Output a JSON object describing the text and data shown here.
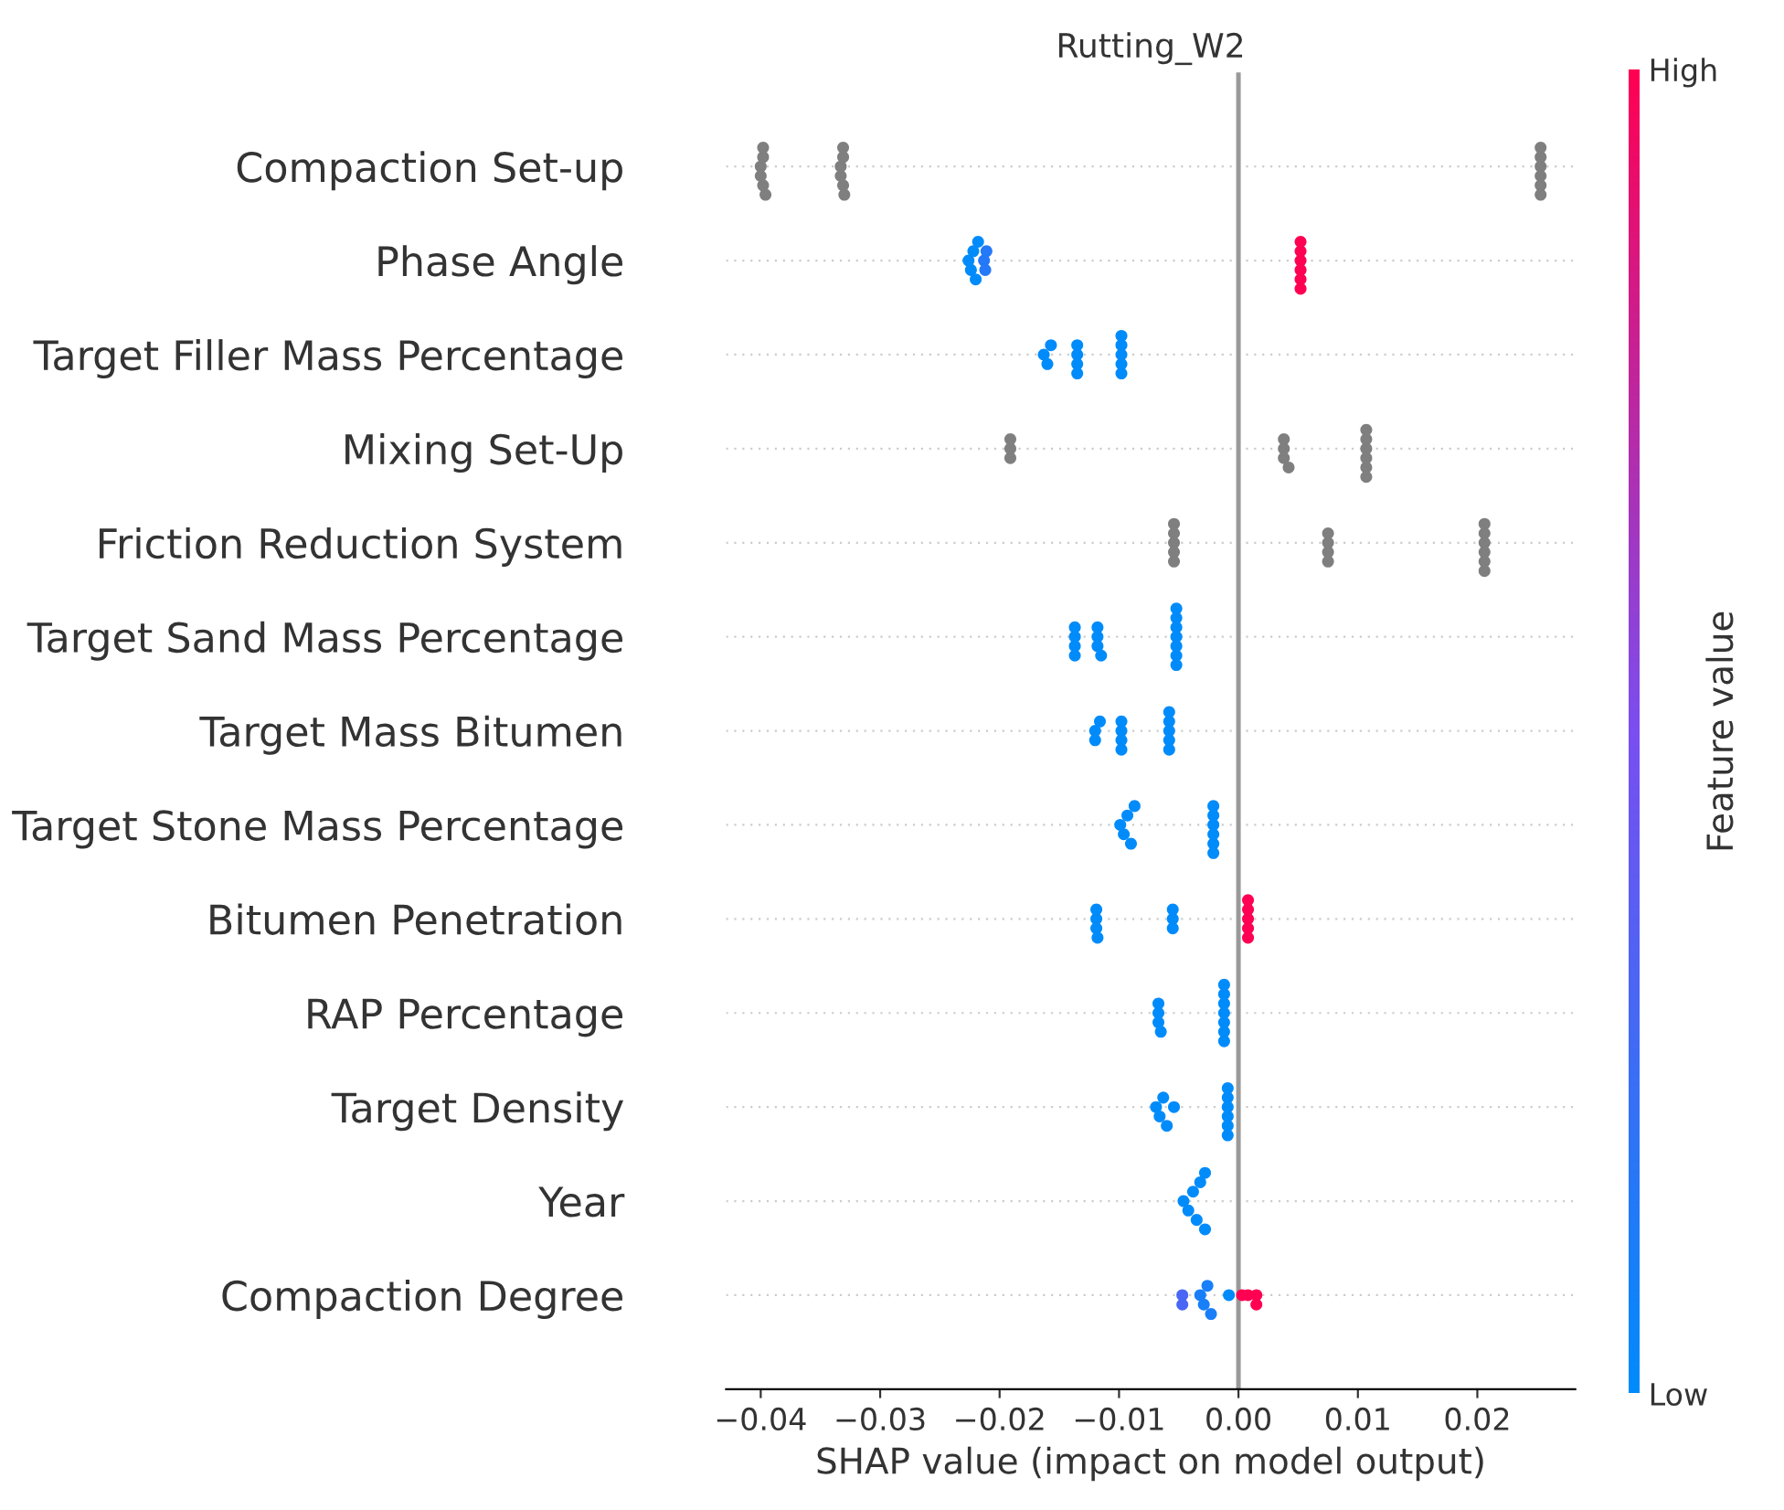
{
  "chart_data": {
    "type": "scatter",
    "orientation": "horizontal",
    "title": "Rutting_W2",
    "xlabel": "SHAP value (impact on model output)",
    "clabel": "Feature value",
    "categories": [
      "Compaction Set-up",
      "Phase Angle",
      "Target Filler Mass Percentage",
      "Mixing Set-Up",
      "Friction Reduction System",
      "Target Sand Mass Percentage",
      "Target Mass Bitumen",
      "Target Stone Mass Percentage",
      "Bitumen Penetration",
      "RAP Percentage",
      "Target Density",
      "Year",
      "Compaction Degree"
    ],
    "series": [
      {
        "colors": [
          "#7f7f7f",
          null,
          null,
          "#7f7f7f",
          "#7f7f7f",
          null,
          null,
          null,
          null,
          null,
          null,
          null,
          null
        ],
        "values": [
          -0.04,
          -0.0226,
          -0.0163,
          -0.0191,
          -0.0054,
          -0.0137,
          -0.012,
          -0.0099,
          -0.0119,
          -0.0067,
          -0.0069,
          -0.0046,
          -0.0047
        ],
        "cvalues": [
          null,
          0,
          0,
          null,
          null,
          0,
          0,
          0,
          0,
          0,
          0,
          0,
          0.3
        ]
      },
      {
        "colors": [
          "#7f7f7f",
          null,
          null,
          "#7f7f7f",
          "#7f7f7f",
          null,
          null,
          null,
          null,
          null,
          null,
          null,
          null
        ],
        "values": [
          -0.0398,
          -0.0222,
          -0.016,
          -0.0191,
          -0.0054,
          -0.0137,
          -0.012,
          -0.0093,
          -0.0119,
          -0.0067,
          -0.0066,
          -0.0042,
          -0.0047
        ],
        "cvalues": [
          null,
          0,
          0,
          null,
          null,
          0,
          0,
          0,
          0,
          0,
          0,
          0,
          0.3
        ]
      },
      {
        "colors": [
          "#7f7f7f",
          null,
          null,
          "#7f7f7f",
          "#7f7f7f",
          null,
          null,
          null,
          null,
          null,
          null,
          null,
          null
        ],
        "values": [
          -0.0398,
          -0.0218,
          -0.0157,
          -0.0191,
          -0.0054,
          -0.0137,
          -0.0116,
          -0.0096,
          -0.0119,
          -0.0067,
          -0.0063,
          -0.0038,
          -0.0032
        ],
        "cvalues": [
          null,
          0,
          0,
          null,
          null,
          0,
          0,
          0,
          0,
          0,
          0,
          0,
          0.1
        ]
      },
      {
        "colors": [
          "#7f7f7f",
          null,
          null,
          "#7f7f7f",
          "#7f7f7f",
          null,
          null,
          null,
          null,
          null,
          null,
          null,
          null
        ],
        "values": [
          -0.0396,
          -0.0224,
          -0.0135,
          0.0038,
          -0.0054,
          -0.0137,
          -0.0098,
          -0.009,
          -0.0118,
          -0.0065,
          -0.006,
          -0.0035,
          -0.0029
        ],
        "cvalues": [
          null,
          0,
          0,
          null,
          null,
          0,
          0,
          0,
          0,
          0,
          0,
          0,
          0.1
        ]
      },
      {
        "colors": [
          "#7f7f7f",
          null,
          null,
          "#7f7f7f",
          "#7f7f7f",
          null,
          null,
          null,
          null,
          null,
          null,
          null,
          null
        ],
        "values": [
          -0.0398,
          -0.0213,
          -0.0135,
          0.0038,
          -0.0054,
          -0.0118,
          -0.0098,
          -0.0087,
          -0.0055,
          -0.0012,
          -0.0054,
          -0.0032,
          -0.0026
        ],
        "cvalues": [
          null,
          0.15,
          0,
          null,
          null,
          0,
          0,
          0,
          0,
          0,
          0,
          0,
          0.1
        ]
      },
      {
        "colors": [
          "#7f7f7f",
          null,
          null,
          "#7f7f7f",
          "#7f7f7f",
          null,
          null,
          null,
          null,
          null,
          null,
          null,
          null
        ],
        "values": [
          -0.04,
          -0.0211,
          -0.0135,
          0.0042,
          0.0075,
          -0.0118,
          -0.0098,
          -0.0021,
          -0.0055,
          -0.0012,
          -0.0009,
          -0.0028,
          -0.0023
        ],
        "cvalues": [
          null,
          0.15,
          0,
          null,
          null,
          0,
          0,
          0,
          0,
          0,
          0,
          0,
          0.1
        ]
      },
      {
        "colors": [
          "#7f7f7f",
          null,
          null,
          "#7f7f7f",
          "#7f7f7f",
          null,
          null,
          null,
          null,
          null,
          null,
          null,
          null
        ],
        "values": [
          -0.0333,
          -0.0212,
          -0.0135,
          0.0038,
          0.0075,
          -0.0115,
          -0.0098,
          -0.0021,
          -0.0055,
          -0.0012,
          -0.0009,
          -0.0028,
          -0.0008
        ],
        "cvalues": [
          null,
          0.15,
          0,
          null,
          null,
          0,
          0,
          0,
          0,
          0,
          0,
          0,
          0
        ]
      },
      {
        "colors": [
          "#7f7f7f",
          null,
          null,
          "#7f7f7f",
          "#7f7f7f",
          null,
          null,
          null,
          null,
          null,
          null,
          null,
          null
        ],
        "values": [
          -0.0331,
          -0.022,
          -0.0098,
          0.0107,
          0.0075,
          -0.0118,
          -0.0058,
          -0.0021,
          0.0008,
          -0.0012,
          -0.0009,
          null,
          0.0003
        ],
        "cvalues": [
          null,
          0,
          0,
          null,
          null,
          0,
          0,
          0,
          1,
          0,
          0,
          null,
          1
        ]
      },
      {
        "colors": [
          "#7f7f7f",
          null,
          null,
          "#7f7f7f",
          "#7f7f7f",
          null,
          null,
          null,
          null,
          null,
          null,
          null,
          null
        ],
        "values": [
          -0.0331,
          0.0052,
          -0.0098,
          0.0107,
          0.0075,
          -0.0052,
          -0.0058,
          -0.0021,
          0.0008,
          -0.0012,
          -0.0009,
          null,
          0.0008
        ],
        "cvalues": [
          null,
          1,
          0,
          null,
          null,
          0,
          0,
          0,
          1,
          0,
          0,
          null,
          1
        ]
      },
      {
        "colors": [
          "#7f7f7f",
          null,
          null,
          "#7f7f7f",
          "#7f7f7f",
          null,
          null,
          null,
          null,
          null,
          null,
          null,
          null
        ],
        "values": [
          -0.033,
          0.0052,
          -0.0098,
          0.0107,
          0.0206,
          -0.0052,
          -0.0058,
          -0.0021,
          0.0008,
          -0.0012,
          -0.0009,
          null,
          0.0015
        ],
        "cvalues": [
          null,
          1,
          0,
          null,
          null,
          0,
          0,
          0,
          1,
          0,
          0,
          null,
          1
        ]
      },
      {
        "colors": [
          "#7f7f7f",
          null,
          null,
          "#7f7f7f",
          "#7f7f7f",
          null,
          null,
          null,
          null,
          null,
          null,
          null,
          null
        ],
        "values": [
          -0.0333,
          0.0052,
          -0.0098,
          0.0107,
          0.0206,
          -0.0052,
          -0.0058,
          -0.0021,
          0.0008,
          -0.0012,
          -0.0009,
          null,
          0.0015
        ],
        "cvalues": [
          null,
          1,
          0,
          null,
          null,
          0,
          0,
          0,
          1,
          0,
          0,
          null,
          1
        ]
      },
      {
        "colors": [
          "#7f7f7f",
          null,
          null,
          "#7f7f7f",
          "#7f7f7f",
          null,
          null,
          null,
          null,
          null,
          null,
          null,
          null
        ],
        "values": [
          -0.0331,
          0.0052,
          -0.0098,
          0.0107,
          0.0206,
          -0.0052,
          -0.0058,
          null,
          0.0008,
          null,
          null,
          null,
          null
        ],
        "cvalues": [
          null,
          1,
          0,
          null,
          null,
          0,
          0,
          null,
          1,
          null,
          null,
          null,
          null
        ]
      },
      {
        "colors": [
          "#7f7f7f",
          null,
          null,
          "#7f7f7f",
          "#7f7f7f",
          null,
          null,
          null,
          null,
          null,
          null,
          null,
          null
        ],
        "values": [
          0.0253,
          0.0052,
          null,
          0.0107,
          0.0206,
          -0.0052,
          null,
          null,
          null,
          null,
          null,
          null,
          null
        ],
        "cvalues": [
          null,
          1,
          null,
          null,
          null,
          0,
          null,
          null,
          null,
          null,
          null,
          null,
          null
        ]
      },
      {
        "colors": [
          "#7f7f7f",
          null,
          null,
          null,
          "#7f7f7f",
          null,
          null,
          null,
          null,
          null,
          null,
          null,
          null
        ],
        "values": [
          0.0253,
          0.0052,
          null,
          null,
          0.0206,
          -0.0052,
          null,
          null,
          null,
          null,
          null,
          null,
          null
        ],
        "cvalues": [
          null,
          1,
          null,
          null,
          null,
          0,
          null,
          null,
          null,
          null,
          null,
          null,
          null
        ]
      },
      {
        "colors": [
          "#7f7f7f",
          null,
          null,
          null,
          "#7f7f7f",
          null,
          null,
          null,
          null,
          null,
          null,
          null,
          null
        ],
        "values": [
          0.0253,
          null,
          null,
          null,
          0.0206,
          -0.0052,
          null,
          null,
          null,
          null,
          null,
          null,
          null
        ],
        "cvalues": [
          null,
          null,
          null,
          null,
          null,
          0,
          null,
          null,
          null,
          null,
          null,
          null,
          null
        ]
      },
      {
        "colors": [
          "#7f7f7f",
          null,
          null,
          null,
          null,
          null,
          null,
          null,
          null,
          null,
          null,
          null,
          null
        ],
        "values": [
          0.0253,
          null,
          null,
          null,
          null,
          null,
          null,
          null,
          null,
          null,
          null,
          null,
          null
        ],
        "cvalues": [
          null,
          null,
          null,
          null,
          null,
          null,
          null,
          null,
          null,
          null,
          null,
          null,
          null
        ]
      },
      {
        "colors": [
          "#7f7f7f",
          null,
          null,
          null,
          null,
          null,
          null,
          null,
          null,
          null,
          null,
          null,
          null
        ],
        "values": [
          0.0253,
          null,
          null,
          null,
          null,
          null,
          null,
          null,
          null,
          null,
          null,
          null,
          null
        ],
        "cvalues": [
          null,
          null,
          null,
          null,
          null,
          null,
          null,
          null,
          null,
          null,
          null,
          null,
          null
        ]
      },
      {
        "colors": [
          "#7f7f7f",
          null,
          null,
          null,
          null,
          null,
          null,
          null,
          null,
          null,
          null,
          null,
          null
        ],
        "values": [
          0.0253,
          null,
          null,
          null,
          null,
          null,
          null,
          null,
          null,
          null,
          null,
          null,
          null
        ],
        "cvalues": [
          null,
          null,
          null,
          null,
          null,
          null,
          null,
          null,
          null,
          null,
          null,
          null,
          null
        ]
      }
    ],
    "xlim": [
      -0.0429,
      0.0282
    ],
    "xticks": [
      {
        "value": -0.04,
        "label": "−0.04"
      },
      {
        "value": -0.03,
        "label": "−0.03"
      },
      {
        "value": -0.02,
        "label": "−0.02"
      },
      {
        "value": -0.01,
        "label": "−0.01"
      },
      {
        "value": 0,
        "label": "0.00"
      },
      {
        "value": 0.01,
        "label": "0.01"
      },
      {
        "value": 0.02,
        "label": "0.02"
      }
    ],
    "clim": [
      0,
      1
    ],
    "cticks": [
      {
        "value": 0,
        "label": "Low"
      },
      {
        "value": 1,
        "label": "High"
      }
    ],
    "ref_lines": [
      {
        "axis": "x",
        "value": 0,
        "color": "#999999"
      }
    ],
    "grid": "y",
    "legend": false,
    "marker": "circle"
  }
}
